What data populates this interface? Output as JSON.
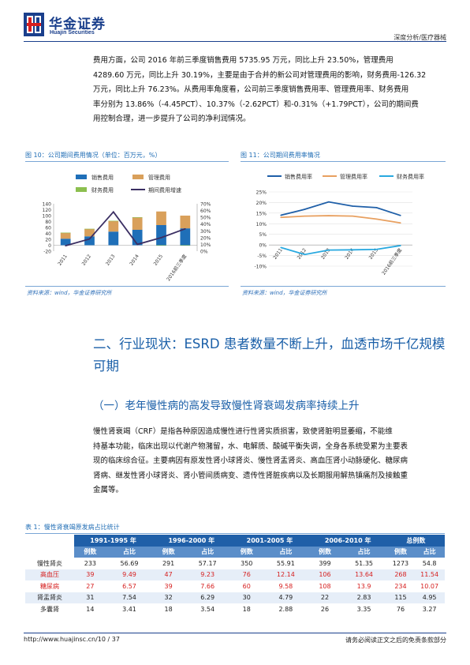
{
  "header": {
    "brand_cn": "华金证券",
    "brand_en": "Huajin Securities",
    "report_type": "深度分析/医疗器械",
    "colors": {
      "brand": "#1a3f8c",
      "logo_red": "#d81e1e"
    }
  },
  "paragraph1": {
    "lines": [
      "费用方面，公司 2016 年前三季度销售费用 5735.95 万元，同比上升 23.50%，管理费用",
      "4289.60 万元，同比上升 30.19%，主要是由于合并的新公司对管理费用的影响，财务费用-126.32",
      "万元，同比上升 76.23%。从费用率角度看，公司前三季度销售费用率、管理费用率、财务费用",
      "率分别为 13.86%（-4.45PCT）、10.37%（-2.62PCT）和-0.31%（+1.79PCT），公司的期间费",
      "用控制合理，进一步提升了公司的净利润情况。"
    ]
  },
  "figure10": {
    "title": "图 10：公司期间费用情况（单位：百万元，%）",
    "source": "资料来源：wind，华金证券研究所"
  },
  "figure11": {
    "title": "图 11：公司期间费用率情况",
    "source": "资料来源：wind，华金证券研究所"
  },
  "chart_data": [
    {
      "type": "bar",
      "stacked": true,
      "categories": [
        "2011",
        "2012",
        "2013",
        "2014",
        "2015",
        "2016前三季度"
      ],
      "series": [
        {
          "name": "销售费用",
          "color": "#1f6fb8",
          "values": [
            22,
            30,
            46,
            52,
            68,
            57
          ]
        },
        {
          "name": "管理费用",
          "color": "#d9a05b",
          "values": [
            20,
            25,
            36,
            42,
            46,
            43
          ]
        },
        {
          "name": "财务费用",
          "color": "#8cbf4f",
          "values": [
            0.5,
            0.5,
            0.5,
            0.5,
            -0.8,
            -1.3
          ]
        },
        {
          "name": "期间费用增速",
          "axis": "right",
          "render": "line",
          "color": "#3b2f63",
          "values": [
            8,
            18,
            58,
            10,
            20,
            33
          ]
        }
      ],
      "ylim": [
        -20,
        140
      ],
      "yticks": [
        -20,
        0,
        20,
        40,
        60,
        80,
        100,
        120,
        140
      ],
      "y2lim": [
        0,
        70
      ],
      "y2ticks": [
        "0%",
        "10%",
        "20%",
        "30%",
        "40%",
        "50%",
        "60%",
        "70%"
      ],
      "legend": "top",
      "grid": false
    },
    {
      "type": "line",
      "categories": [
        "2011",
        "2012",
        "2013",
        "2014",
        "2015",
        "2016前三季度"
      ],
      "series": [
        {
          "name": "销售费用率",
          "color": "#1f5fa8",
          "values": [
            14.0,
            16.8,
            20.3,
            18.3,
            17.6,
            13.9
          ]
        },
        {
          "name": "管理费用率",
          "color": "#e8a060",
          "values": [
            13.0,
            13.6,
            13.8,
            13.6,
            12.2,
            10.4
          ]
        },
        {
          "name": "财务费用率",
          "color": "#29a9e0",
          "values": [
            -1.2,
            -4.5,
            -2.4,
            -2.3,
            -2.1,
            -0.3
          ]
        }
      ],
      "ylim": [
        -10,
        25
      ],
      "yticks": [
        "-10%",
        "-5%",
        "0%",
        "5%",
        "10%",
        "15%",
        "20%",
        "25%"
      ],
      "legend": "top",
      "grid": true
    }
  ],
  "section2": {
    "title_line1": "二、行业现状：ESRD 患者数量不断上升，血透市场千亿规模",
    "title_line2": "可期"
  },
  "subsection1": {
    "title": "（一）老年慢性病的高发导致慢性肾衰竭发病率持续上升"
  },
  "paragraph2": {
    "lines": [
      "慢性肾衰竭（CRF）是指各种原因造成慢性进行性肾实质损害，致使肾脏明显萎缩，不能维",
      "持基本功能，临床出现以代谢产物潴留，水、电解质、酸碱平衡失调，全身各系统受累为主要表",
      "现的临床综合征。主要病因有原发性肾小球肾炎、慢性肾盂肾炎、高血压肾小动脉硬化、糖尿病",
      "肾病、继发性肾小球肾炎、肾小管间质病变、遗传性肾脏疾病以及长期服用解热镇痛剂及接触重",
      "金属等。"
    ]
  },
  "table1": {
    "title": "表 1：慢性肾衰竭原发病占比统计",
    "periods": [
      "1991-1995 年",
      "1996-2000 年",
      "2001-2005 年",
      "2006-2010 年",
      "总例数"
    ],
    "subheaders": [
      "例数",
      "占比",
      "例数",
      "占比",
      "例数",
      "占比",
      "例数",
      "占比",
      "例数",
      "占比"
    ],
    "rows": [
      {
        "name": "慢性肾炎",
        "highlight": false,
        "cells": [
          "233",
          "56.69",
          "291",
          "57.17",
          "350",
          "55.91",
          "399",
          "51.35",
          "1273",
          "54.8"
        ]
      },
      {
        "name": "高血压",
        "highlight": true,
        "cells": [
          "39",
          "9.49",
          "47",
          "9.23",
          "76",
          "12.14",
          "106",
          "13.64",
          "268",
          "11.54"
        ]
      },
      {
        "name": "糖尿病",
        "highlight": true,
        "cells": [
          "27",
          "6.57",
          "39",
          "7.66",
          "60",
          "9.58",
          "108",
          "13.9",
          "234",
          "10.07"
        ]
      },
      {
        "name": "肾盂肾炎",
        "highlight": false,
        "cells": [
          "31",
          "7.54",
          "32",
          "6.29",
          "30",
          "4.79",
          "22",
          "2.83",
          "115",
          "4.95"
        ]
      },
      {
        "name": "多囊肾",
        "highlight": false,
        "cells": [
          "14",
          "3.41",
          "18",
          "3.54",
          "18",
          "2.88",
          "26",
          "3.35",
          "76",
          "3.27"
        ]
      }
    ]
  },
  "footer": {
    "url": "http://www.huajinsc.cn/10 / 37",
    "disclaimer": "请务必阅读正文之后的免责条款部分"
  }
}
